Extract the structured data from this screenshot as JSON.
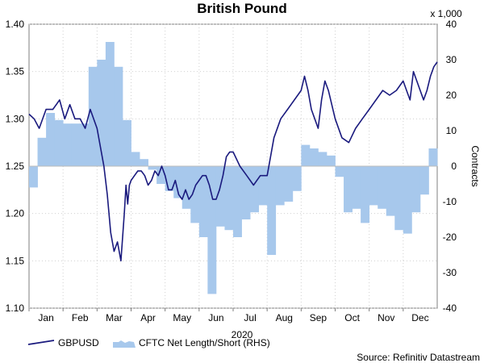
{
  "chart_data": {
    "type": "line+area",
    "title": "British Pound",
    "xlabel": "2020",
    "right_axis_multiplier": "x 1,000",
    "right_axis_label": "Contracts",
    "source": "Source: Refinitiv Datastream",
    "months": [
      "Jan",
      "Feb",
      "Mar",
      "Apr",
      "May",
      "Jun",
      "Jul",
      "Aug",
      "Sep",
      "Oct",
      "Nov",
      "Dec"
    ],
    "left_axis": {
      "ylim": [
        1.1,
        1.4
      ],
      "ticks": [
        "1.10",
        "1.15",
        "1.20",
        "1.25",
        "1.30",
        "1.35",
        "1.40"
      ]
    },
    "right_axis": {
      "ylim": [
        -40,
        40
      ],
      "ticks": [
        "-40",
        "-30",
        "-20",
        "-10",
        "0",
        "10",
        "20",
        "30",
        "40"
      ]
    },
    "series": [
      {
        "name": "GBPUSD",
        "axis": "left",
        "color": "#1a1a7e",
        "x": [
          0.0,
          0.15,
          0.3,
          0.5,
          0.7,
          0.9,
          1.05,
          1.2,
          1.35,
          1.5,
          1.65,
          1.8,
          2.0,
          2.2,
          2.3,
          2.4,
          2.5,
          2.6,
          2.7,
          2.8,
          2.85,
          2.9,
          2.95,
          3.0,
          3.1,
          3.2,
          3.3,
          3.4,
          3.5,
          3.6,
          3.7,
          3.8,
          3.9,
          4.0,
          4.1,
          4.2,
          4.3,
          4.4,
          4.5,
          4.6,
          4.7,
          4.8,
          4.9,
          5.0,
          5.1,
          5.2,
          5.3,
          5.4,
          5.5,
          5.6,
          5.7,
          5.8,
          5.9,
          6.0,
          6.2,
          6.4,
          6.6,
          6.8,
          7.0,
          7.2,
          7.4,
          7.6,
          7.8,
          8.0,
          8.1,
          8.2,
          8.3,
          8.4,
          8.5,
          8.6,
          8.7,
          8.8,
          9.0,
          9.2,
          9.4,
          9.6,
          9.8,
          10.0,
          10.2,
          10.4,
          10.6,
          10.8,
          11.0,
          11.1,
          11.2,
          11.3,
          11.4,
          11.5,
          11.6,
          11.7,
          11.8,
          11.9,
          12.0
        ],
        "values": [
          1.305,
          1.3,
          1.29,
          1.31,
          1.31,
          1.32,
          1.3,
          1.315,
          1.3,
          1.3,
          1.29,
          1.31,
          1.29,
          1.25,
          1.22,
          1.18,
          1.16,
          1.17,
          1.15,
          1.2,
          1.23,
          1.21,
          1.23,
          1.235,
          1.24,
          1.245,
          1.245,
          1.24,
          1.23,
          1.235,
          1.245,
          1.24,
          1.25,
          1.24,
          1.225,
          1.225,
          1.235,
          1.22,
          1.215,
          1.225,
          1.215,
          1.22,
          1.23,
          1.235,
          1.24,
          1.24,
          1.23,
          1.215,
          1.215,
          1.225,
          1.24,
          1.26,
          1.265,
          1.265,
          1.25,
          1.24,
          1.23,
          1.24,
          1.24,
          1.28,
          1.3,
          1.31,
          1.32,
          1.33,
          1.345,
          1.33,
          1.31,
          1.3,
          1.29,
          1.32,
          1.34,
          1.33,
          1.3,
          1.28,
          1.275,
          1.29,
          1.3,
          1.31,
          1.32,
          1.33,
          1.325,
          1.33,
          1.34,
          1.33,
          1.32,
          1.35,
          1.34,
          1.33,
          1.32,
          1.33,
          1.345,
          1.355,
          1.36
        ]
      },
      {
        "name": "CFTC Net Length/Short (RHS)",
        "axis": "right",
        "color": "#a7c8ec",
        "x": [
          0.0,
          0.25,
          0.5,
          0.75,
          1.0,
          1.25,
          1.5,
          1.75,
          2.0,
          2.25,
          2.5,
          2.75,
          3.0,
          3.25,
          3.5,
          3.75,
          4.0,
          4.25,
          4.5,
          4.75,
          5.0,
          5.25,
          5.5,
          5.75,
          6.0,
          6.25,
          6.5,
          6.75,
          7.0,
          7.25,
          7.5,
          7.75,
          8.0,
          8.25,
          8.5,
          8.75,
          9.0,
          9.25,
          9.5,
          9.75,
          10.0,
          10.25,
          10.5,
          10.75,
          11.0,
          11.25,
          11.5,
          11.75
        ],
        "values": [
          -6,
          8,
          15,
          13,
          12,
          12,
          12,
          28,
          30,
          35,
          28,
          13,
          4,
          2,
          -1,
          -5,
          -7,
          -9,
          -12,
          -16,
          -20,
          -36,
          -17,
          -18,
          -20,
          -15,
          -13,
          -11,
          -25,
          -11,
          -10,
          -7,
          6,
          5,
          4,
          3,
          -3,
          -13,
          -12,
          -16,
          -11,
          -12,
          -14,
          -18,
          -19,
          -13,
          -8,
          5
        ]
      }
    ]
  }
}
